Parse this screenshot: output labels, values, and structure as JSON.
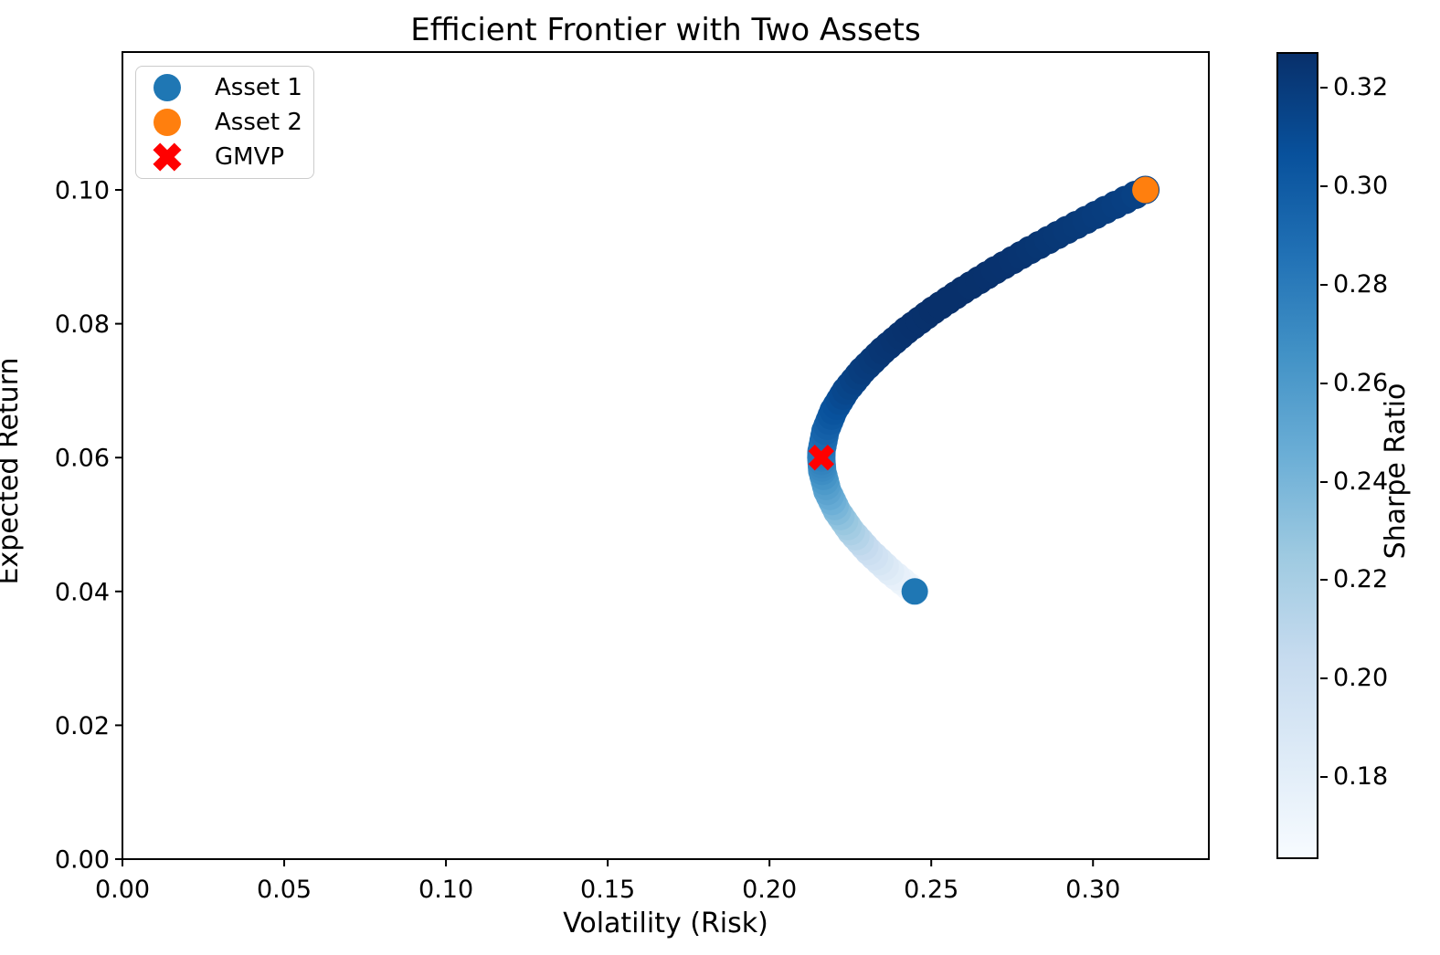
{
  "chart_data": {
    "type": "scatter",
    "title": "Efficient Frontier with Two Assets",
    "xlabel": "Volatility (Risk)",
    "ylabel": "Expected Return",
    "xlim": [
      0.0,
      0.3358
    ],
    "ylim": [
      0.0,
      0.1206
    ],
    "x_ticks": [
      0.0,
      0.05,
      0.1,
      0.15,
      0.2,
      0.25,
      0.3
    ],
    "y_ticks": [
      0.0,
      0.02,
      0.04,
      0.06,
      0.08,
      0.1
    ],
    "grid": false,
    "frontier": {
      "columns": [
        "volatility",
        "expected_return",
        "sharpe_ratio"
      ],
      "points": [
        [
          0.2449,
          0.04,
          0.1633
        ],
        [
          0.2373,
          0.043,
          0.1813
        ],
        [
          0.2307,
          0.046,
          0.1994
        ],
        [
          0.2252,
          0.049,
          0.2176
        ],
        [
          0.2209,
          0.052,
          0.2354
        ],
        [
          0.2179,
          0.055,
          0.2524
        ],
        [
          0.2163,
          0.058,
          0.2681
        ],
        [
          0.216,
          0.06,
          0.2777
        ],
        [
          0.2161,
          0.061,
          0.2823
        ],
        [
          0.2173,
          0.064,
          0.2946
        ],
        [
          0.2198,
          0.067,
          0.3049
        ],
        [
          0.2236,
          0.07,
          0.313
        ],
        [
          0.2287,
          0.073,
          0.3192
        ],
        [
          0.235,
          0.076,
          0.3235
        ],
        [
          0.2423,
          0.079,
          0.3261
        ],
        [
          0.2506,
          0.082,
          0.3272
        ],
        [
          0.2598,
          0.085,
          0.3272
        ],
        [
          0.2698,
          0.088,
          0.3262
        ],
        [
          0.2805,
          0.091,
          0.3244
        ],
        [
          0.2919,
          0.094,
          0.322
        ],
        [
          0.3038,
          0.097,
          0.3193
        ],
        [
          0.3162,
          0.1,
          0.3162
        ]
      ]
    },
    "assets": [
      {
        "name": "Asset 1",
        "volatility": 0.2449,
        "expected_return": 0.04,
        "color": "#1f77b4"
      },
      {
        "name": "Asset 2",
        "volatility": 0.3162,
        "expected_return": 0.1,
        "color": "#ff7f0e"
      }
    ],
    "gmvp": {
      "name": "GMVP",
      "volatility": 0.216,
      "expected_return": 0.06,
      "color": "#ff0000"
    },
    "colorbar": {
      "label": "Sharpe Ratio",
      "vmin": 0.1633,
      "vmax": 0.3273,
      "ticks": [
        0.18,
        0.2,
        0.22,
        0.24,
        0.26,
        0.28,
        0.3,
        0.32
      ],
      "colormap_name": "Blues",
      "colormap": [
        [
          0.0,
          "#f7fbff"
        ],
        [
          0.125,
          "#deebf7"
        ],
        [
          0.25,
          "#c6dbef"
        ],
        [
          0.375,
          "#9ecae1"
        ],
        [
          0.5,
          "#6baed6"
        ],
        [
          0.625,
          "#4292c6"
        ],
        [
          0.75,
          "#2171b5"
        ],
        [
          0.875,
          "#08519c"
        ],
        [
          1.0,
          "#08306b"
        ]
      ]
    },
    "legend": {
      "items": [
        {
          "label": "Asset 1",
          "marker": "circle",
          "color": "#1f77b4"
        },
        {
          "label": "Asset 2",
          "marker": "circle",
          "color": "#ff7f0e"
        },
        {
          "label": "GMVP",
          "marker": "x",
          "color": "#ff0000"
        }
      ]
    },
    "axis_color": "#000000"
  }
}
